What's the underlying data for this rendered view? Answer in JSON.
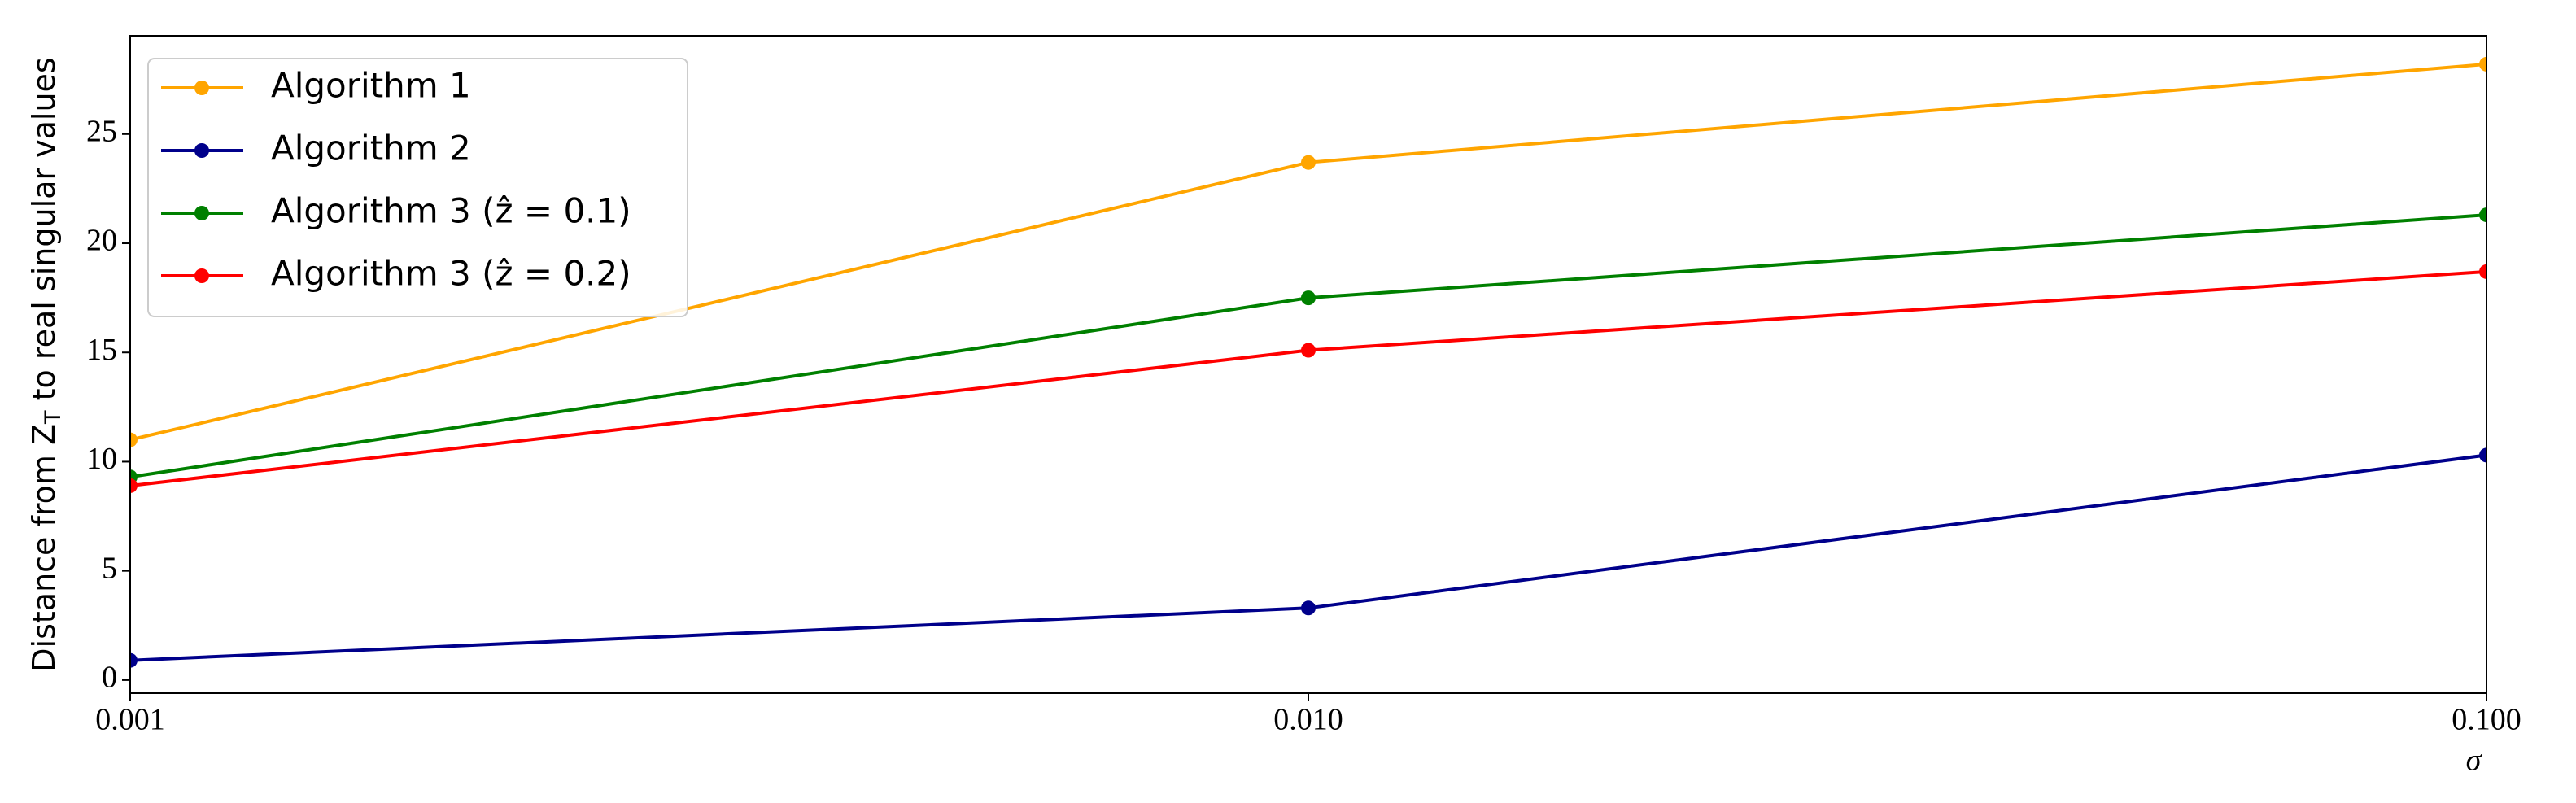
{
  "chart_data": {
    "type": "line",
    "ylabel": [
      "Distance from Z",
      "T",
      " to real singular values"
    ],
    "xlabel": "σ",
    "xscale": "log",
    "x": [
      0.001,
      0.01,
      0.1
    ],
    "xlim": [
      0.001,
      0.1
    ],
    "xticks": [
      0.001,
      {
        "value": 0.01,
        "label": "0.010"
      },
      {
        "value": 0.1,
        "label": "0.100"
      }
    ],
    "ylim": [
      -0.6,
      29.5
    ],
    "yticks": [
      0,
      5,
      10,
      15,
      20,
      25
    ],
    "legend": "upper left",
    "series": [
      {
        "name": "Algorithm 1",
        "color": "#ffa500",
        "values": [
          11.0,
          23.7,
          28.2
        ]
      },
      {
        "name": "Algorithm 2",
        "color": "#00008b",
        "values": [
          0.9,
          3.3,
          10.3
        ]
      },
      {
        "name": "Algorithm 3 (ẑ = 0.1)",
        "color": "#008000",
        "values": [
          9.3,
          17.5,
          21.3
        ]
      },
      {
        "name": "Algorithm 3 (ẑ = 0.2)",
        "color": "#ff0000",
        "values": [
          8.9,
          15.1,
          18.7
        ]
      }
    ]
  }
}
